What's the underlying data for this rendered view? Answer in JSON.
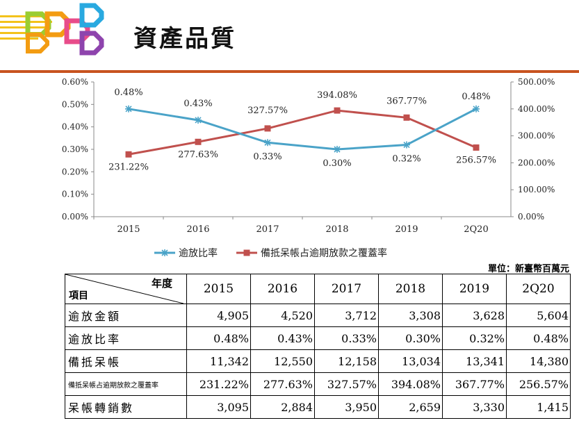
{
  "page_title": "資產品質",
  "unit_note": "單位：新臺幣百萬元",
  "colors": {
    "accent_rule": "#c8531f",
    "series_overdue": "#4aa3c8",
    "series_coverage": "#c0504d"
  },
  "chart_data": {
    "type": "line",
    "categories": [
      "2015",
      "2016",
      "2017",
      "2018",
      "2019",
      "2Q20"
    ],
    "series": [
      {
        "name": "逾放比率",
        "axis": "left",
        "values": [
          0.48,
          0.43,
          0.33,
          0.3,
          0.32,
          0.48
        ],
        "labels": [
          "0.48%",
          "0.43%",
          "0.33%",
          "0.30%",
          "0.32%",
          "0.48%"
        ],
        "marker": "star",
        "color": "#4aa3c8"
      },
      {
        "name": "備抵呆帳占逾期放款之覆蓋率",
        "axis": "right",
        "values": [
          231.22,
          277.63,
          327.57,
          394.08,
          367.77,
          256.57
        ],
        "labels": [
          "231.22%",
          "277.63%",
          "327.57%",
          "394.08%",
          "367.77%",
          "256.57%"
        ],
        "marker": "square",
        "color": "#c0504d"
      }
    ],
    "y_left": {
      "ylim": [
        0,
        0.6
      ],
      "ticks": [
        "0.00%",
        "0.10%",
        "0.20%",
        "0.30%",
        "0.40%",
        "0.50%",
        "0.60%"
      ]
    },
    "y_right": {
      "ylim": [
        0,
        500
      ],
      "ticks": [
        "0.00%",
        "100.00%",
        "200.00%",
        "300.00%",
        "400.00%",
        "500.00%"
      ]
    },
    "legend_position": "bottom",
    "grid": false
  },
  "table": {
    "corner_top": "年度",
    "corner_bottom": "項目",
    "years": [
      "2015",
      "2016",
      "2017",
      "2018",
      "2019",
      "2Q20"
    ],
    "rows": [
      {
        "label": "逾放金額",
        "values": [
          "4,905",
          "4,520",
          "3,712",
          "3,308",
          "3,628",
          "5,604"
        ]
      },
      {
        "label": "逾放比率",
        "values": [
          "0.48%",
          "0.43%",
          "0.33%",
          "0.30%",
          "0.32%",
          "0.48%"
        ]
      },
      {
        "label": "備抵呆帳",
        "values": [
          "11,342",
          "12,550",
          "12,158",
          "13,034",
          "13,341",
          "14,380"
        ]
      },
      {
        "label": "備抵呆帳占逾期放款之覆蓋率",
        "values": [
          "231.22%",
          "277.63%",
          "327.57%",
          "394.08%",
          "367.77%",
          "256.57%"
        ]
      },
      {
        "label": "呆帳轉銷數",
        "values": [
          "3,095",
          "2,884",
          "3,950",
          "2,659",
          "3,330",
          "1,415"
        ]
      }
    ]
  }
}
